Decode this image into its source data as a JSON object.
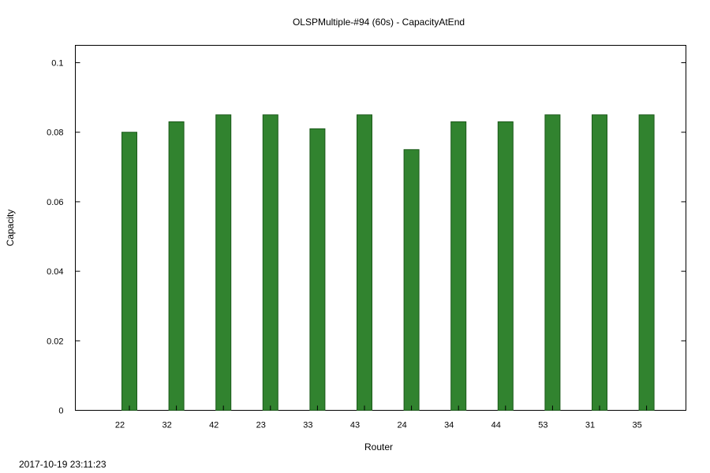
{
  "chart_data": {
    "type": "bar",
    "title": "OLSPMultiple-#94 (60s) - CapacityAtEnd",
    "xlabel": "Router",
    "ylabel": "Capacity",
    "categories": [
      "22",
      "32",
      "42",
      "23",
      "33",
      "43",
      "24",
      "34",
      "44",
      "53",
      "31",
      "35"
    ],
    "values": [
      0.08,
      0.083,
      0.085,
      0.085,
      0.081,
      0.085,
      0.075,
      0.083,
      0.083,
      0.085,
      0.085,
      0.085
    ],
    "ylim": [
      0,
      0.105
    ],
    "yticks": [
      0,
      0.02,
      0.04,
      0.06,
      0.08,
      0.1
    ],
    "ytick_labels": [
      "0",
      "0.02",
      "0.04",
      "0.06",
      "0.08",
      "0.1"
    ],
    "grid": false,
    "bar_color": "#31832f",
    "bar_edge_color": "#1b5a1a"
  },
  "timestamp": "2017-10-19 23:11:23"
}
